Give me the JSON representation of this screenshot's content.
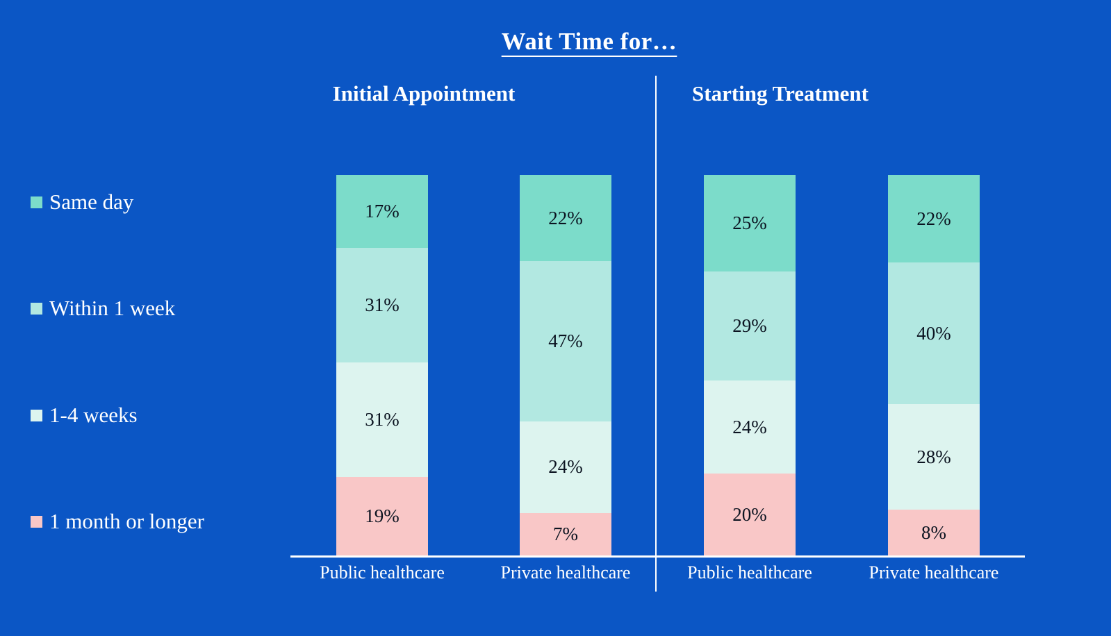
{
  "accent_colors": {
    "background": "#0b56c5",
    "text_light": "#ffffff",
    "text_dark": "#0b1320",
    "axis_line": "#ffffff"
  },
  "chart_data": {
    "type": "bar",
    "variant": "stacked-100-percent",
    "title": "Wait Time for…",
    "value_suffix": "%",
    "legend_position": "left",
    "series": [
      {
        "name": "Same day",
        "color": "#7cdcca"
      },
      {
        "name": "Within 1 week",
        "color": "#b2e8e1"
      },
      {
        "name": "1-4 weeks",
        "color": "#ddf4ef"
      },
      {
        "name": "1 month or longer",
        "color": "#f9c7c7"
      }
    ],
    "groups": [
      {
        "label": "Initial Appointment",
        "bars": [
          {
            "category": "Public healthcare",
            "values": [
              17,
              31,
              31,
              19
            ],
            "labels": [
              "17%",
              "31%",
              "31%",
              "19%"
            ]
          },
          {
            "category": "Private healthcare",
            "values": [
              22,
              47,
              24,
              7
            ],
            "labels": [
              "22%",
              "47%",
              "24%",
              "7%"
            ]
          }
        ]
      },
      {
        "label": "Starting Treatment",
        "bars": [
          {
            "category": "Public healthcare",
            "values": [
              25,
              29,
              24,
              20
            ],
            "labels": [
              "25%",
              "29%",
              "24%",
              "20%"
            ]
          },
          {
            "category": "Private healthcare",
            "values": [
              22,
              40,
              28,
              8
            ],
            "labels": [
              "22%",
              "40%",
              "28%",
              "8%"
            ]
          }
        ]
      }
    ]
  }
}
